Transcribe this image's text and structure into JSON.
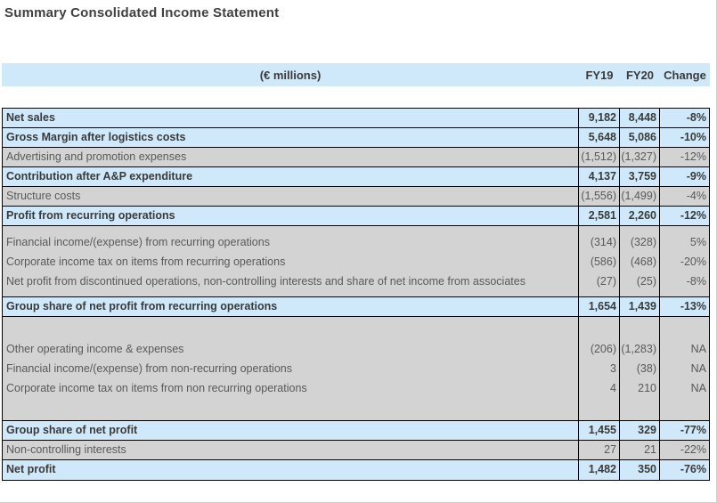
{
  "title": "Summary Consolidated Income Statement",
  "colors": {
    "highlight_blue": "#cfe9fa",
    "row_gray": "#d3d3d3",
    "border": "#000000",
    "bold_text": "#3a3a3a",
    "regular_text": "#595959"
  },
  "header": {
    "unit_label": "(€ millions)",
    "col_fy19": "FY19",
    "col_fy20": "FY20",
    "col_change": "Change"
  },
  "rows": [
    {
      "label": "Net sales",
      "fy19": "9,182",
      "fy20": "8,448",
      "change": "-8%"
    },
    {
      "label": "Gross Margin after logistics costs",
      "fy19": "5,648",
      "fy20": "5,086",
      "change": "-10%"
    },
    {
      "label": "Advertising and promotion expenses",
      "fy19": "(1,512)",
      "fy20": "(1,327)",
      "change": "-12%"
    },
    {
      "label": "Contribution after A&P expenditure",
      "fy19": "4,137",
      "fy20": "3,759",
      "change": "-9%"
    },
    {
      "label": "Structure costs",
      "fy19": "(1,556)",
      "fy20": "(1,499)",
      "change": "-4%"
    },
    {
      "label": "Profit from recurring operations",
      "fy19": "2,581",
      "fy20": "2,260",
      "change": "-12%"
    },
    {
      "label": "Financial income/(expense) from recurring operations",
      "fy19": "(314)",
      "fy20": "(328)",
      "change": "5%"
    },
    {
      "label": "Corporate income tax on items from recurring operations",
      "fy19": "(586)",
      "fy20": "(468)",
      "change": "-20%"
    },
    {
      "label": "Net profit from discontinued operations, non-controlling interests and share of net income from associates",
      "fy19": "(27)",
      "fy20": "(25)",
      "change": "-8%"
    },
    {
      "label": "Group share of net profit from recurring operations",
      "fy19": "1,654",
      "fy20": "1,439",
      "change": "-13%"
    },
    {
      "label": "Other operating income & expenses",
      "fy19": "(206)",
      "fy20": "(1,283)",
      "change": "NA"
    },
    {
      "label": "Financial income/(expense) from non-recurring operations",
      "fy19": "3",
      "fy20": "(38)",
      "change": "NA"
    },
    {
      "label": "Corporate income tax on items from non recurring operations",
      "fy19": "4",
      "fy20": "210",
      "change": "NA"
    },
    {
      "label": "Group share of net profit",
      "fy19": "1,455",
      "fy20": "329",
      "change": "-77%"
    },
    {
      "label": "Non-controlling interests",
      "fy19": "27",
      "fy20": "21",
      "change": "-22%"
    },
    {
      "label": "Net profit",
      "fy19": "1,482",
      "fy20": "350",
      "change": "-76%"
    }
  ]
}
